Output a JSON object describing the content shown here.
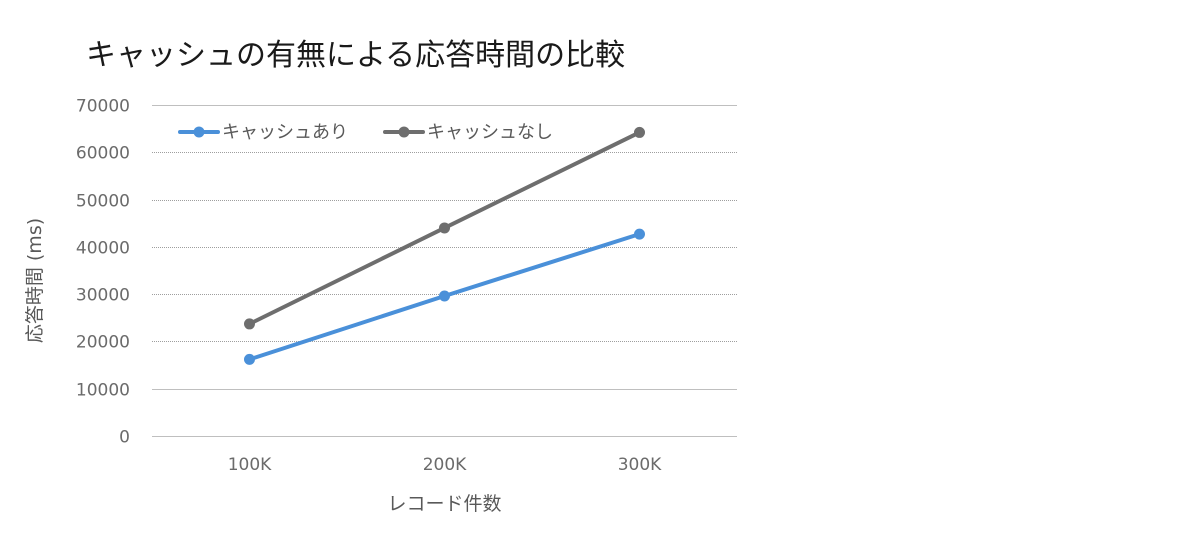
{
  "chart_data": {
    "type": "line",
    "title": "キャッシュの有無による応答時間の比較",
    "xlabel": "レコード件数",
    "ylabel": "応答時間 (ms)",
    "categories": [
      "100K",
      "200K",
      "300K"
    ],
    "ylim": [
      0,
      70000
    ],
    "yticks": [
      0,
      10000,
      20000,
      30000,
      40000,
      50000,
      60000,
      70000
    ],
    "grid": true,
    "legend": "top-left",
    "series": [
      {
        "name": "キャッシュあり",
        "color": "#4a90d9",
        "values": [
          16200,
          29600,
          42700
        ]
      },
      {
        "name": "キャッシュなし",
        "color": "#6e6e6e",
        "values": [
          23700,
          44000,
          64200
        ]
      }
    ]
  }
}
